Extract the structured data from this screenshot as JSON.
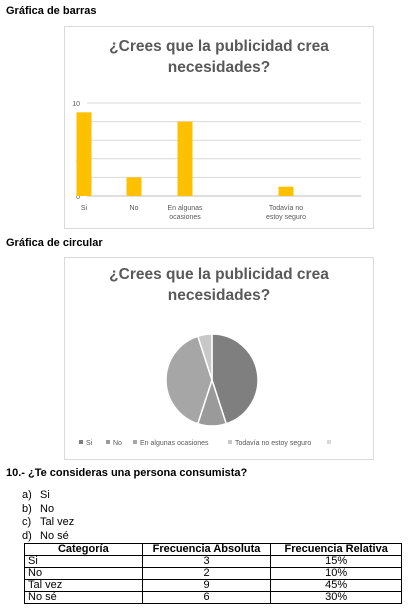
{
  "headings": {
    "bar": "Gráfica de barras",
    "pie": "Gráfica de circular"
  },
  "chart_data": [
    {
      "type": "bar",
      "title": "¿Crees que la publicidad crea necesidades?",
      "categories": [
        "Si",
        "No",
        "En algunas ocasiones",
        "Todavía no estoy seguro"
      ],
      "values": [
        9,
        2,
        8,
        1
      ],
      "ylim": [
        0,
        10
      ],
      "yticks": [
        0,
        2,
        4,
        6,
        8,
        10
      ],
      "grid": true,
      "color": "#ffc000"
    },
    {
      "type": "pie",
      "title": "¿Crees que la publicidad crea necesidades?",
      "categories": [
        "Si",
        "No",
        "En algunas ocasiones",
        "Todavía no estoy seguro",
        ""
      ],
      "values": [
        9,
        2,
        8,
        1,
        0
      ],
      "colors": [
        "#7f7f7f",
        "#9a9a9a",
        "#a6a6a6",
        "#c8c8c8",
        "#d9d9d9"
      ],
      "legend": "bottom"
    }
  ],
  "question": {
    "title": "10.- ¿Te consideras una persona consumista?",
    "options": [
      {
        "letter": "a)",
        "text": "Si"
      },
      {
        "letter": "b)",
        "text": "No"
      },
      {
        "letter": "c)",
        "text": "Tal vez"
      },
      {
        "letter": "d)",
        "text": "No sé"
      }
    ]
  },
  "table": {
    "headers": [
      "Categoría",
      "Frecuencia Absoluta",
      "Frecuencia Relativa"
    ],
    "rows": [
      [
        "Si",
        "3",
        "15%"
      ],
      [
        "No",
        "2",
        "10%"
      ],
      [
        "Tal vez",
        "9",
        "45%"
      ],
      [
        "No sé",
        "6",
        "30%"
      ]
    ]
  }
}
